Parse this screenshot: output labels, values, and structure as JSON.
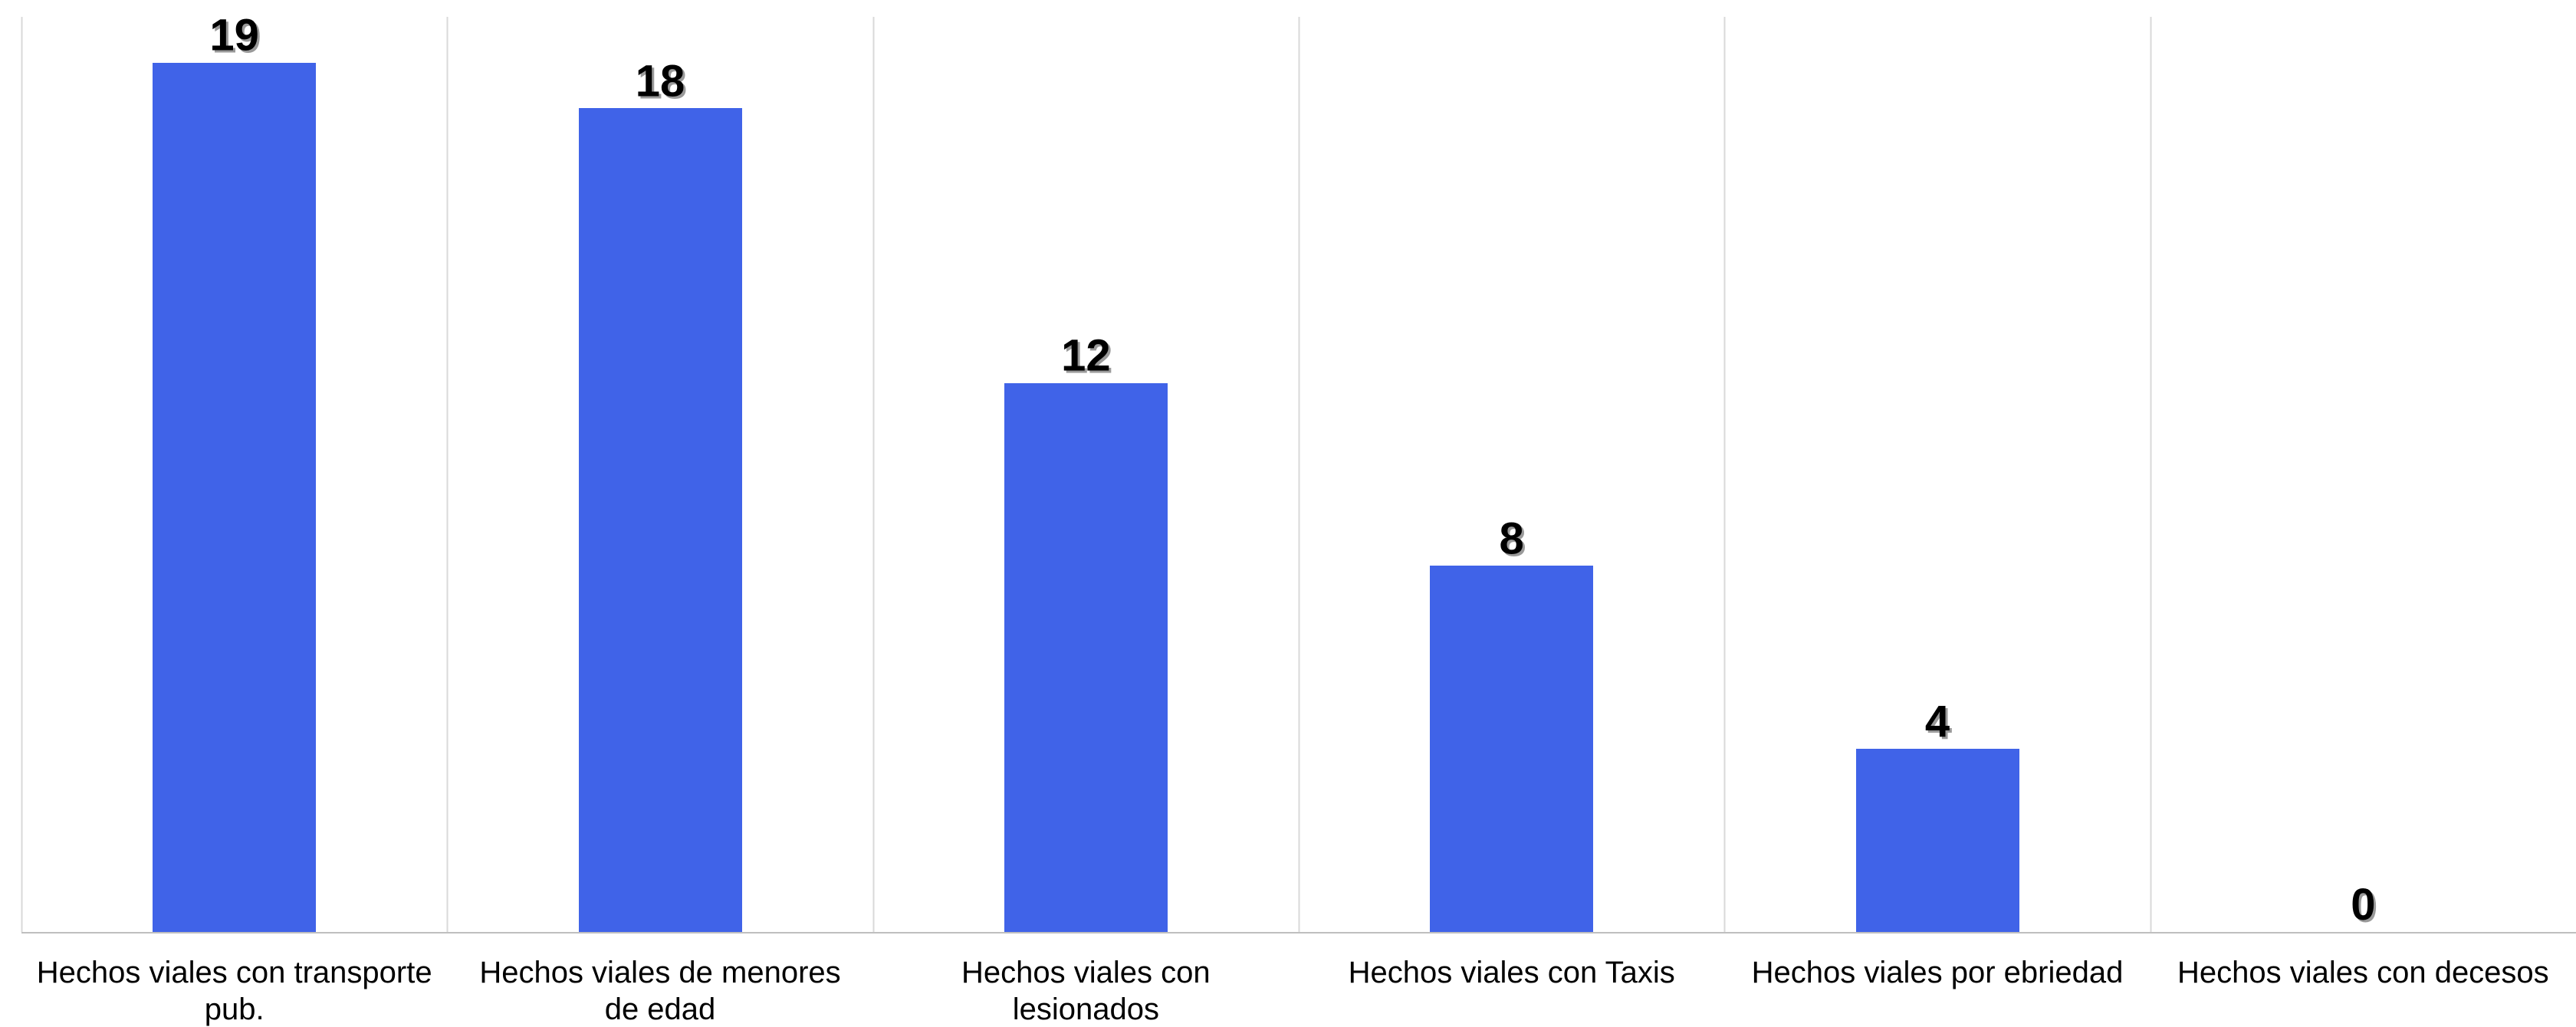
{
  "chart_data": {
    "type": "bar",
    "categories": [
      [
        "Hechos viales con transporte",
        "pub."
      ],
      [
        "Hechos viales de menores",
        "de edad"
      ],
      [
        "Hechos viales con",
        "lesionados"
      ],
      [
        "Hechos viales con Taxis"
      ],
      [
        "Hechos viales por ebriedad"
      ],
      [
        "Hechos viales con decesos"
      ]
    ],
    "values": [
      19,
      18,
      12,
      8,
      4,
      0
    ],
    "ylim": [
      0,
      20
    ],
    "grid": "vertical separators between categories",
    "legend": "none",
    "colors": {
      "bar": "#4063E8",
      "gridline": "#d9d9d9",
      "axis": "#bfbfbf",
      "text": "#000000"
    }
  }
}
